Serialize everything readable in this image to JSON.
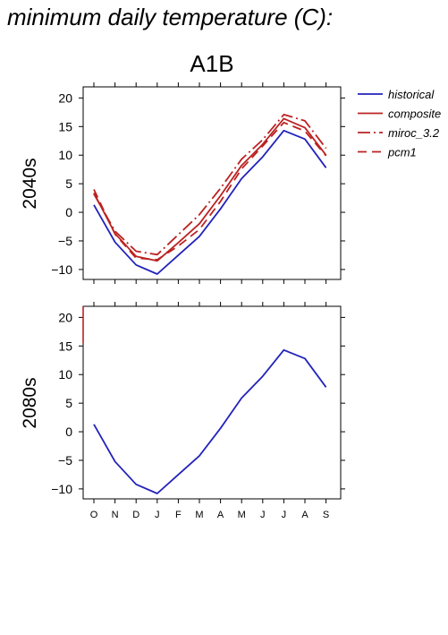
{
  "header": {
    "title": "minimum daily temperature (C):"
  },
  "colors": {
    "historical": "#2222bb",
    "projection": "#bb2222",
    "axis": "#000000"
  },
  "chart_data": {
    "type": "line",
    "scenario": "A1B",
    "categories": [
      "O",
      "N",
      "D",
      "J",
      "F",
      "M",
      "A",
      "M",
      "J",
      "J",
      "A",
      "S"
    ],
    "yticks": [
      -10,
      -5,
      0,
      5,
      10,
      15,
      20
    ],
    "ylim": [
      -10.8,
      21
    ],
    "legend": {
      "placement": "right",
      "entries": [
        {
          "name": "historical",
          "color": "#2222bb",
          "dash": ""
        },
        {
          "name": "composite",
          "color": "#bb2222",
          "dash": ""
        },
        {
          "name": "miroc_3.2",
          "color": "#bb2222",
          "dash": "14,4,2,4"
        },
        {
          "name": "pcm1",
          "color": "#bb2222",
          "dash": "10,6"
        }
      ]
    },
    "panels": [
      {
        "label": "2040s",
        "series": [
          {
            "name": "historical",
            "color": "#2222bb",
            "dash": "",
            "values": [
              1.3,
              -5.2,
              -9.2,
              -10.8,
              -7.5,
              -4.2,
              0.6,
              5.9,
              9.7,
              14.3,
              12.8,
              7.8
            ]
          },
          {
            "name": "composite",
            "color": "#bb2222",
            "dash": "",
            "values": [
              3.4,
              -3.7,
              -7.7,
              -8.5,
              -5.3,
              -2.0,
              2.9,
              8.2,
              11.9,
              16.4,
              14.8,
              10.0
            ]
          },
          {
            "name": "miroc_3.2",
            "color": "#bb2222",
            "dash": "14,4,2,4",
            "values": [
              3.2,
              -3.3,
              -6.8,
              -7.4,
              -3.9,
              -0.4,
              4.2,
              9.3,
              12.7,
              17.1,
              16.0,
              11.2
            ]
          },
          {
            "name": "pcm1",
            "color": "#bb2222",
            "dash": "10,6",
            "values": [
              4.0,
              -3.8,
              -8.0,
              -8.3,
              -5.9,
              -3.0,
              1.9,
              7.6,
              11.6,
              15.7,
              14.2,
              9.9
            ]
          }
        ]
      },
      {
        "label": "2080s",
        "series": [
          {
            "name": "historical",
            "color": "#2222bb",
            "dash": "",
            "values": [
              1.3,
              -5.2,
              -9.2,
              -10.8,
              -7.5,
              -4.2,
              0.6,
              5.9,
              9.7,
              14.3,
              12.8,
              7.8
            ]
          },
          {
            "name": "composite",
            "color": "#bb2222",
            "dash": "",
            "values": [
              null,
              null,
              null,
              null,
              null,
              null,
              null,
              null,
              null,
              null,
              null,
              null
            ]
          }
        ]
      }
    ]
  }
}
